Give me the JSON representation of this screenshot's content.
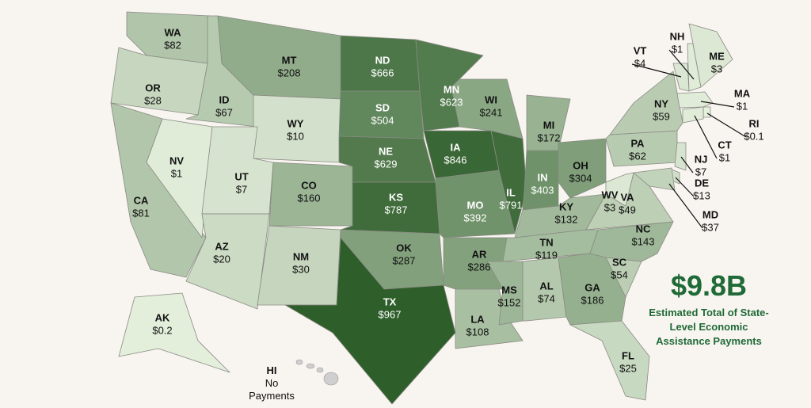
{
  "map_data": {
    "states": [
      {
        "abbr": "WA",
        "value": 82,
        "value_label": "$82"
      },
      {
        "abbr": "OR",
        "value": 28,
        "value_label": "$28"
      },
      {
        "abbr": "CA",
        "value": 81,
        "value_label": "$81"
      },
      {
        "abbr": "NV",
        "value": 1,
        "value_label": "$1"
      },
      {
        "abbr": "ID",
        "value": 67,
        "value_label": "$67"
      },
      {
        "abbr": "MT",
        "value": 208,
        "value_label": "$208"
      },
      {
        "abbr": "WY",
        "value": 10,
        "value_label": "$10"
      },
      {
        "abbr": "UT",
        "value": 7,
        "value_label": "$7"
      },
      {
        "abbr": "AZ",
        "value": 20,
        "value_label": "$20"
      },
      {
        "abbr": "CO",
        "value": 160,
        "value_label": "$160"
      },
      {
        "abbr": "NM",
        "value": 30,
        "value_label": "$30"
      },
      {
        "abbr": "ND",
        "value": 666,
        "value_label": "$666"
      },
      {
        "abbr": "SD",
        "value": 504,
        "value_label": "$504"
      },
      {
        "abbr": "NE",
        "value": 629,
        "value_label": "$629"
      },
      {
        "abbr": "KS",
        "value": 787,
        "value_label": "$787"
      },
      {
        "abbr": "OK",
        "value": 287,
        "value_label": "$287"
      },
      {
        "abbr": "TX",
        "value": 967,
        "value_label": "$967"
      },
      {
        "abbr": "MN",
        "value": 623,
        "value_label": "$623"
      },
      {
        "abbr": "IA",
        "value": 846,
        "value_label": "$846"
      },
      {
        "abbr": "MO",
        "value": 392,
        "value_label": "$392"
      },
      {
        "abbr": "AR",
        "value": 286,
        "value_label": "$286"
      },
      {
        "abbr": "LA",
        "value": 108,
        "value_label": "$108"
      },
      {
        "abbr": "WI",
        "value": 241,
        "value_label": "$241"
      },
      {
        "abbr": "IL",
        "value": 791,
        "value_label": "$791"
      },
      {
        "abbr": "MI",
        "value": 172,
        "value_label": "$172"
      },
      {
        "abbr": "IN",
        "value": 403,
        "value_label": "$403"
      },
      {
        "abbr": "OH",
        "value": 304,
        "value_label": "$304"
      },
      {
        "abbr": "KY",
        "value": 132,
        "value_label": "$132"
      },
      {
        "abbr": "TN",
        "value": 119,
        "value_label": "$119"
      },
      {
        "abbr": "MS",
        "value": 152,
        "value_label": "$152"
      },
      {
        "abbr": "AL",
        "value": 74,
        "value_label": "$74"
      },
      {
        "abbr": "GA",
        "value": 186,
        "value_label": "$186"
      },
      {
        "abbr": "FL",
        "value": 25,
        "value_label": "$25"
      },
      {
        "abbr": "SC",
        "value": 54,
        "value_label": "$54"
      },
      {
        "abbr": "NC",
        "value": 143,
        "value_label": "$143"
      },
      {
        "abbr": "VA",
        "value": 49,
        "value_label": "$49"
      },
      {
        "abbr": "WV",
        "value": 3,
        "value_label": "$3"
      },
      {
        "abbr": "PA",
        "value": 62,
        "value_label": "$62"
      },
      {
        "abbr": "NY",
        "value": 59,
        "value_label": "$59"
      },
      {
        "abbr": "VT",
        "value": 4,
        "value_label": "$4"
      },
      {
        "abbr": "NH",
        "value": 1,
        "value_label": "$1"
      },
      {
        "abbr": "ME",
        "value": 3,
        "value_label": "$3"
      },
      {
        "abbr": "MA",
        "value": 1,
        "value_label": "$1"
      },
      {
        "abbr": "RI",
        "value": 0.1,
        "value_label": "$0.1"
      },
      {
        "abbr": "CT",
        "value": 1,
        "value_label": "$1"
      },
      {
        "abbr": "NJ",
        "value": 7,
        "value_label": "$7"
      },
      {
        "abbr": "DE",
        "value": 13,
        "value_label": "$13"
      },
      {
        "abbr": "MD",
        "value": 37,
        "value_label": "$37"
      },
      {
        "abbr": "AK",
        "value": 0.2,
        "value_label": "$0.2"
      }
    ],
    "hawaii": {
      "abbr": "HI",
      "label": "No Payments"
    },
    "total": "$9.8B",
    "caption": "Estimated Total of State-Level Economic Assistance Payments"
  }
}
